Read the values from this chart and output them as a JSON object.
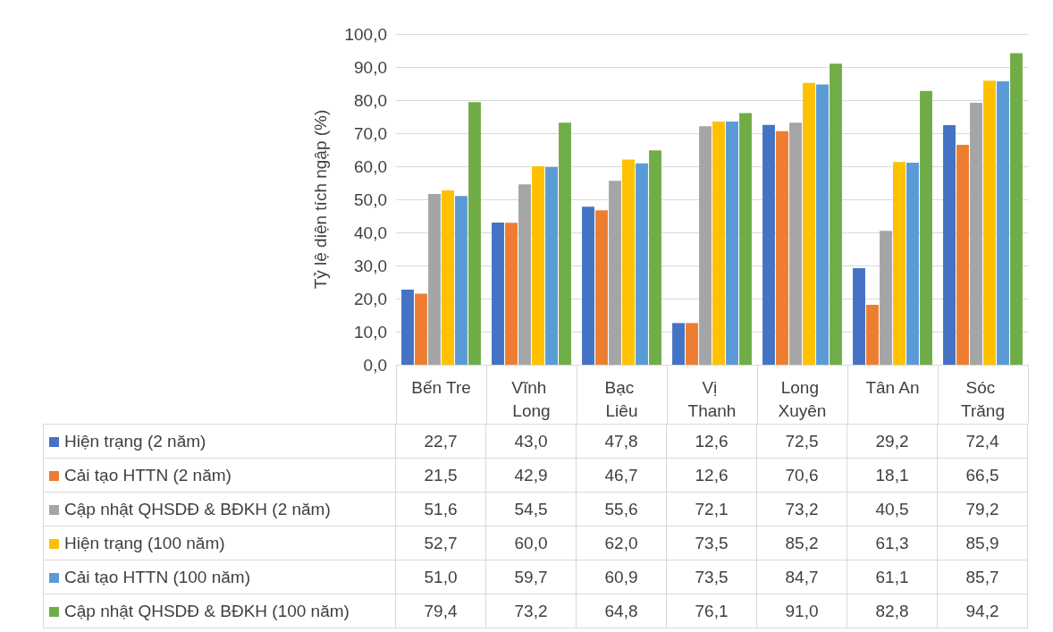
{
  "chart_data": {
    "type": "bar",
    "ylabel": "Tỷ lệ diện tích ngập (%)",
    "categories": [
      "Bến Tre",
      "Vĩnh Long",
      "Bạc Liêu",
      "Vị Thanh",
      "Long Xuyên",
      "Tân An",
      "Sóc Trăng"
    ],
    "series": [
      {
        "name": "Hiện trạng (2 năm)",
        "color": "#4472c4",
        "values": [
          22.7,
          43.0,
          47.8,
          12.6,
          72.5,
          29.2,
          72.4
        ],
        "value_labels": [
          "22,7",
          "43,0",
          "47,8",
          "12,6",
          "72,5",
          "29,2",
          "72,4"
        ]
      },
      {
        "name": "Cải tạo HTTN (2 năm)",
        "color": "#ed7d31",
        "values": [
          21.5,
          42.9,
          46.7,
          12.6,
          70.6,
          18.1,
          66.5
        ],
        "value_labels": [
          "21,5",
          "42,9",
          "46,7",
          "12,6",
          "70,6",
          "18,1",
          "66,5"
        ]
      },
      {
        "name": "Cập nhật QHSDĐ & BĐKH (2 năm)",
        "color": "#a5a5a5",
        "values": [
          51.6,
          54.5,
          55.6,
          72.1,
          73.2,
          40.5,
          79.2
        ],
        "value_labels": [
          "51,6",
          "54,5",
          "55,6",
          "72,1",
          "73,2",
          "40,5",
          "79,2"
        ]
      },
      {
        "name": "Hiện trạng (100 năm)",
        "color": "#ffc000",
        "values": [
          52.7,
          60.0,
          62.0,
          73.5,
          85.2,
          61.3,
          85.9
        ],
        "value_labels": [
          "52,7",
          "60,0",
          "62,0",
          "73,5",
          "85,2",
          "61,3",
          "85,9"
        ]
      },
      {
        "name": "Cải tạo HTTN (100 năm)",
        "color": "#5b9bd5",
        "values": [
          51.0,
          59.7,
          60.9,
          73.5,
          84.7,
          61.1,
          85.7
        ],
        "value_labels": [
          "51,0",
          "59,7",
          "60,9",
          "73,5",
          "84,7",
          "61,1",
          "85,7"
        ]
      },
      {
        "name": "Cập nhật QHSDĐ & BĐKH (100 năm)",
        "color": "#70ad47",
        "values": [
          79.4,
          73.2,
          64.8,
          76.1,
          91.0,
          82.8,
          94.2
        ],
        "value_labels": [
          "79,4",
          "73,2",
          "64,8",
          "76,1",
          "91,0",
          "82,8",
          "94,2"
        ]
      }
    ],
    "ylim": [
      0,
      100
    ],
    "yticks": [
      {
        "value": 0,
        "label": "0,0"
      },
      {
        "value": 10,
        "label": "10,0"
      },
      {
        "value": 20,
        "label": "20,0"
      },
      {
        "value": 30,
        "label": "30,0"
      },
      {
        "value": 40,
        "label": "40,0"
      },
      {
        "value": 50,
        "label": "50,0"
      },
      {
        "value": 60,
        "label": "60,0"
      },
      {
        "value": 70,
        "label": "70,0"
      },
      {
        "value": 80,
        "label": "80,0"
      },
      {
        "value": 90,
        "label": "90,0"
      },
      {
        "value": 100,
        "label": "100,0"
      }
    ],
    "grid": "y",
    "legend": "bottom"
  }
}
